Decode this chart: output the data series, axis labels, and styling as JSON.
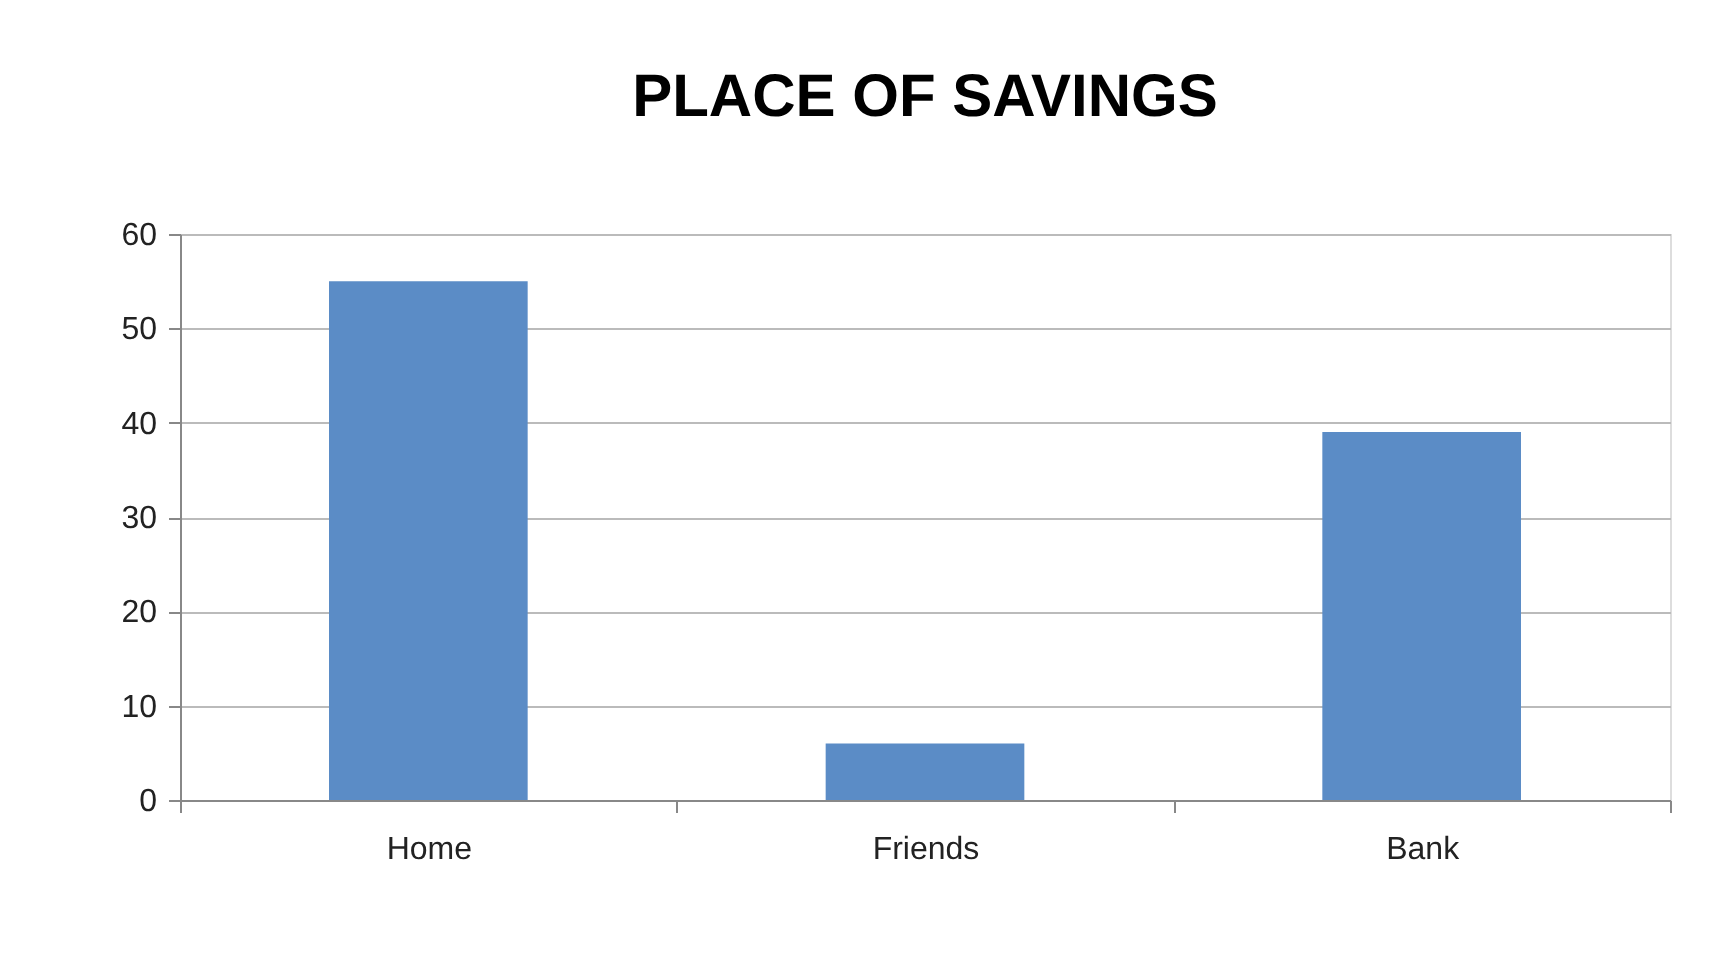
{
  "chart_data": {
    "type": "bar",
    "title": "PLACE OF SAVINGS",
    "categories": [
      "Home",
      "Friends",
      "Bank"
    ],
    "values": [
      55,
      6,
      39
    ],
    "color": "#5b8cc6",
    "ylim": [
      0,
      60
    ],
    "yticks": [
      0,
      10,
      20,
      30,
      40,
      50,
      60
    ],
    "grid": "y"
  }
}
